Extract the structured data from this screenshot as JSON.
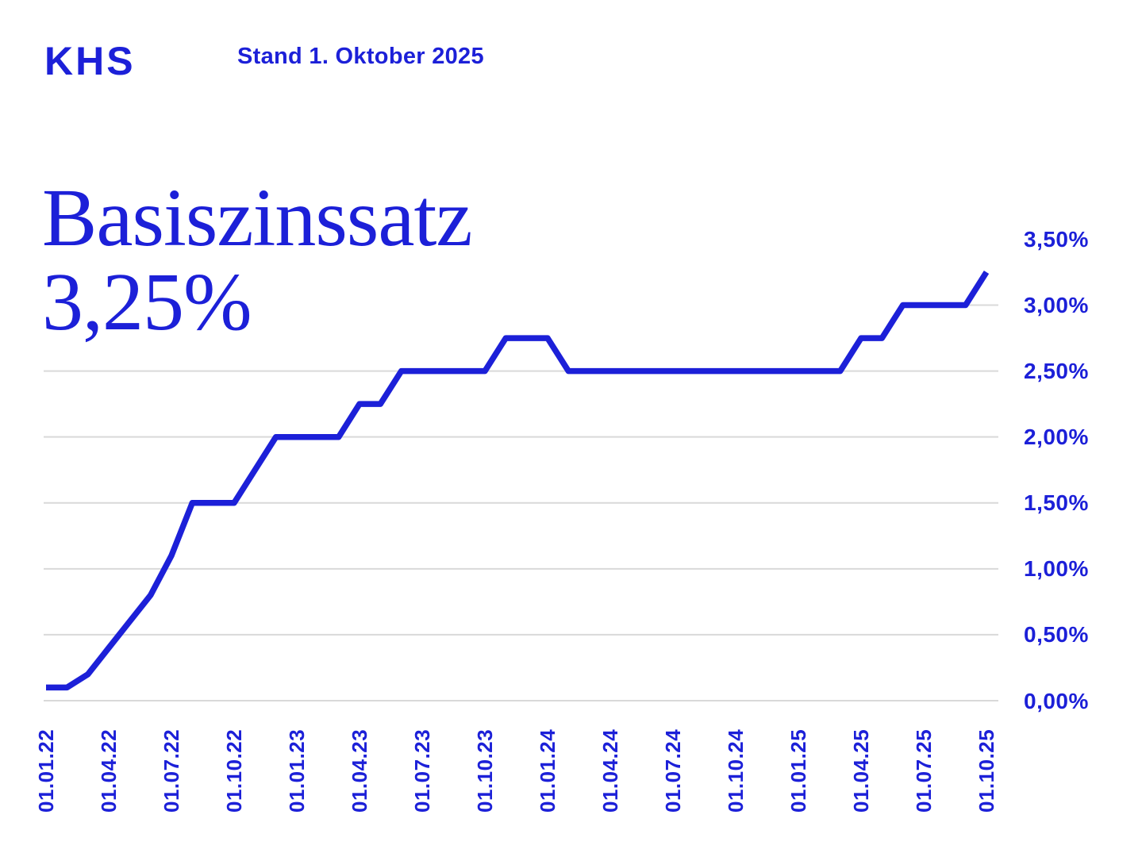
{
  "header": {
    "logo": "KHS",
    "stand": "Stand 1. Oktober 2025"
  },
  "title": {
    "line1": "Basiszinssatz",
    "line2": "3,25%"
  },
  "colors": {
    "accent": "#1c20d8",
    "grid": "#d9d9d9"
  },
  "chart_data": {
    "type": "line",
    "title": "Basiszinssatz",
    "current_value_label": "3,25%",
    "unit": "%",
    "ylim": [
      0,
      3.5
    ],
    "grid": "horizontal",
    "legend_position": "none",
    "y_tick_labels": [
      "3,50%",
      "3,00%",
      "2,50%",
      "2,00%",
      "1,50%",
      "1,00%",
      "0,50%",
      "0,00%"
    ],
    "y_tick_values": [
      3.5,
      3.0,
      2.5,
      2.0,
      1.5,
      1.0,
      0.5,
      0.0
    ],
    "gridline_values": [
      2.5,
      2.0,
      1.5,
      1.0,
      0.5,
      0.0
    ],
    "partial_gridline_value": 3.0,
    "x_tick_labels": [
      "01.01.22",
      "01.04.22",
      "01.07.22",
      "01.10.22",
      "01.01.23",
      "01.04.23",
      "01.07.23",
      "01.10.23",
      "01.01.24",
      "01.04.24",
      "01.07.24",
      "01.10.24",
      "01.01.25",
      "01.04.25",
      "01.07.25",
      "01.10.25"
    ],
    "x": [
      "01.01.22",
      "01.02.22",
      "01.03.22",
      "01.04.22",
      "01.05.22",
      "01.06.22",
      "01.07.22",
      "01.08.22",
      "01.09.22",
      "01.10.22",
      "01.11.22",
      "01.12.22",
      "01.01.23",
      "01.02.23",
      "01.03.23",
      "01.04.23",
      "01.05.23",
      "01.06.23",
      "01.07.23",
      "01.08.23",
      "01.09.23",
      "01.10.23",
      "01.11.23",
      "01.12.23",
      "01.01.24",
      "01.02.24",
      "01.03.24",
      "01.04.24",
      "01.05.24",
      "01.06.24",
      "01.07.24",
      "01.08.24",
      "01.09.24",
      "01.10.24",
      "01.11.24",
      "01.12.24",
      "01.01.25",
      "01.02.25",
      "01.03.25",
      "01.04.25",
      "01.05.25",
      "01.06.25",
      "01.07.25",
      "01.08.25",
      "01.09.25",
      "01.10.25"
    ],
    "series": [
      {
        "name": "Basiszinssatz",
        "values": [
          0.1,
          0.1,
          0.2,
          0.4,
          0.6,
          0.8,
          1.1,
          1.5,
          1.5,
          1.5,
          1.75,
          2.0,
          2.0,
          2.0,
          2.0,
          2.25,
          2.25,
          2.5,
          2.5,
          2.5,
          2.5,
          2.5,
          2.75,
          2.75,
          2.75,
          2.5,
          2.5,
          2.5,
          2.5,
          2.5,
          2.5,
          2.5,
          2.5,
          2.5,
          2.5,
          2.5,
          2.5,
          2.5,
          2.5,
          2.75,
          2.75,
          3.0,
          3.0,
          3.0,
          3.0,
          3.25
        ]
      }
    ]
  }
}
